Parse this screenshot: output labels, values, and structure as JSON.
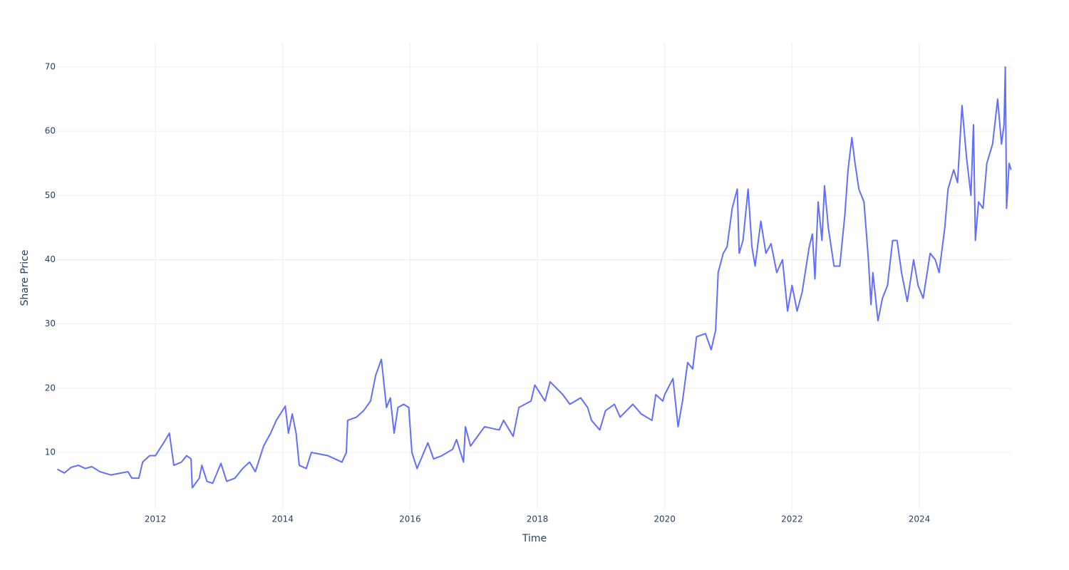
{
  "chart_data": {
    "type": "line",
    "x_label": "Time",
    "y_label": "Share Price",
    "color": "#636efa",
    "xlim": [
      2010.455,
      2025.455
    ],
    "ylim": [
      1.13,
      73.77
    ],
    "xticks": [
      2012,
      2014,
      2016,
      2018,
      2020,
      2022,
      2024
    ],
    "yticks": [
      10,
      20,
      30,
      40,
      50,
      60,
      70
    ],
    "grid": true,
    "x": [
      2010.46,
      2010.57,
      2010.68,
      2010.79,
      2010.9,
      2011.0,
      2011.13,
      2011.3,
      2011.46,
      2011.57,
      2011.63,
      2011.74,
      2011.8,
      2011.91,
      2012.0,
      2012.13,
      2012.22,
      2012.29,
      2012.41,
      2012.49,
      2012.56,
      2012.58,
      2012.69,
      2012.73,
      2012.81,
      2012.9,
      2013.03,
      2013.12,
      2013.25,
      2013.37,
      2013.48,
      2013.57,
      2013.7,
      2013.81,
      2013.9,
      2014.04,
      2014.09,
      2014.15,
      2014.21,
      2014.26,
      2014.37,
      2014.45,
      2014.71,
      2014.93,
      2015.0,
      2015.02,
      2015.16,
      2015.27,
      2015.38,
      2015.46,
      2015.55,
      2015.63,
      2015.69,
      2015.75,
      2015.81,
      2015.9,
      2015.98,
      2016.03,
      2016.11,
      2016.28,
      2016.37,
      2016.5,
      2016.67,
      2016.73,
      2016.84,
      2016.87,
      2016.95,
      2017.17,
      2017.4,
      2017.47,
      2017.62,
      2017.71,
      2017.9,
      2017.96,
      2018.12,
      2018.2,
      2018.4,
      2018.51,
      2018.68,
      2018.79,
      2018.85,
      2018.98,
      2019.07,
      2019.21,
      2019.3,
      2019.5,
      2019.63,
      2019.8,
      2019.86,
      2019.97,
      2020.0,
      2020.13,
      2020.21,
      2020.28,
      2020.36,
      2020.44,
      2020.5,
      2020.64,
      2020.73,
      2020.8,
      2020.84,
      2020.92,
      2020.98,
      2021.06,
      2021.14,
      2021.17,
      2021.23,
      2021.31,
      2021.37,
      2021.42,
      2021.51,
      2021.59,
      2021.67,
      2021.76,
      2021.85,
      2021.93,
      2022.0,
      2022.08,
      2022.16,
      2022.27,
      2022.32,
      2022.36,
      2022.41,
      2022.47,
      2022.51,
      2022.57,
      2022.66,
      2022.75,
      2022.83,
      2022.88,
      2022.94,
      2022.99,
      2023.05,
      2023.13,
      2023.2,
      2023.24,
      2023.27,
      2023.35,
      2023.42,
      2023.5,
      2023.58,
      2023.65,
      2023.72,
      2023.81,
      2023.91,
      2023.98,
      2024.06,
      2024.17,
      2024.25,
      2024.31,
      2024.4,
      2024.45,
      2024.54,
      2024.6,
      2024.67,
      2024.74,
      2024.81,
      2024.85,
      2024.88,
      2024.93,
      2025.0,
      2025.06,
      2025.15,
      2025.23,
      2025.29,
      2025.33,
      2025.35,
      2025.37,
      2025.41,
      2025.44
    ],
    "values": [
      7.4,
      6.8,
      7.7,
      8.0,
      7.5,
      7.8,
      7.0,
      6.5,
      6.8,
      7.0,
      6.0,
      6.0,
      8.5,
      9.5,
      9.5,
      11.5,
      13.0,
      8.0,
      8.5,
      9.5,
      9.0,
      4.5,
      6.0,
      8.0,
      5.5,
      5.2,
      8.3,
      5.5,
      6.0,
      7.5,
      8.5,
      7.0,
      11.0,
      13.0,
      15.0,
      17.2,
      13.0,
      16.0,
      13.0,
      8.0,
      7.5,
      10.0,
      9.5,
      8.5,
      10.0,
      15.0,
      15.5,
      16.5,
      18.0,
      22.0,
      24.5,
      17.0,
      18.5,
      13.0,
      17.0,
      17.5,
      17.0,
      10.0,
      7.5,
      11.5,
      9.0,
      9.5,
      10.5,
      12.0,
      8.5,
      14.0,
      11.0,
      14.0,
      13.5,
      15.0,
      12.5,
      17.0,
      18.0,
      20.5,
      18.0,
      21.0,
      19.0,
      17.5,
      18.5,
      17.0,
      15.0,
      13.5,
      16.5,
      17.5,
      15.5,
      17.5,
      16.0,
      15.0,
      19.0,
      18.0,
      19.0,
      21.5,
      14.0,
      18.0,
      24.0,
      23.0,
      28.0,
      28.5,
      26.0,
      29.0,
      38.0,
      41.0,
      42.0,
      48.0,
      51.0,
      41.0,
      43.0,
      51.0,
      42.0,
      39.0,
      46.0,
      41.0,
      42.5,
      38.0,
      40.0,
      32.0,
      36.0,
      32.0,
      35.0,
      42.0,
      44.0,
      37.0,
      49.0,
      43.0,
      51.5,
      45.0,
      39.0,
      39.0,
      47.0,
      54.0,
      59.0,
      55.0,
      51.0,
      49.0,
      40.0,
      33.0,
      38.0,
      30.5,
      34.0,
      36.0,
      43.0,
      43.0,
      38.0,
      33.5,
      40.0,
      36.0,
      34.0,
      41.0,
      40.0,
      38.0,
      45.0,
      51.0,
      54.0,
      52.0,
      64.0,
      56.0,
      50.0,
      61.0,
      43.0,
      49.0,
      48.0,
      55.0,
      58.0,
      65.0,
      58.0,
      61.0,
      70.0,
      48.0,
      55.0,
      54.0
    ]
  }
}
